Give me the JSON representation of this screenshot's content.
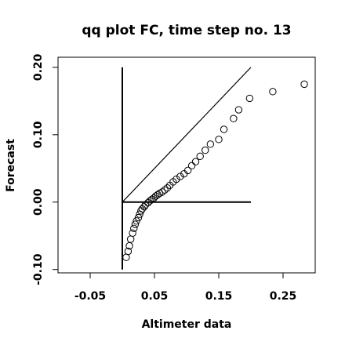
{
  "chart_data": {
    "type": "scatter",
    "title": "qq plot FC, time step no. 13",
    "xlabel": "Altimeter data",
    "ylabel": "Forecast",
    "xlim": [
      -0.1,
      0.3
    ],
    "ylim": [
      -0.105,
      0.215
    ],
    "xticks": [
      -0.05,
      0.05,
      0.15,
      0.25
    ],
    "xtick_labels": [
      "-0.05",
      "0.05",
      "0.15",
      "0.25"
    ],
    "yticks": [
      -0.1,
      0.0,
      0.1,
      0.2
    ],
    "ytick_labels": [
      "-0.10",
      "0.00",
      "0.10",
      "0.20"
    ],
    "grid": false,
    "reference_lines": {
      "diagonal": {
        "from": [
          0.0,
          0.0
        ],
        "to": [
          0.2,
          0.2
        ]
      },
      "vertical": {
        "x": 0.0,
        "from_y": -0.1,
        "to_y": 0.2
      },
      "horizontal": {
        "y": 0.0,
        "from_x": 0.0,
        "to_x": 0.2
      }
    },
    "points": [
      [
        0.006,
        -0.082
      ],
      [
        0.009,
        -0.073
      ],
      [
        0.011,
        -0.065
      ],
      [
        0.013,
        -0.055
      ],
      [
        0.016,
        -0.046
      ],
      [
        0.018,
        -0.039
      ],
      [
        0.02,
        -0.033
      ],
      [
        0.022,
        -0.028
      ],
      [
        0.025,
        -0.023
      ],
      [
        0.027,
        -0.018
      ],
      [
        0.029,
        -0.013
      ],
      [
        0.031,
        -0.01
      ],
      [
        0.034,
        -0.007
      ],
      [
        0.036,
        -0.004
      ],
      [
        0.04,
        -0.001
      ],
      [
        0.043,
        0.002
      ],
      [
        0.046,
        0.004
      ],
      [
        0.049,
        0.006
      ],
      [
        0.052,
        0.009
      ],
      [
        0.055,
        0.011
      ],
      [
        0.058,
        0.013
      ],
      [
        0.062,
        0.015
      ],
      [
        0.066,
        0.018
      ],
      [
        0.07,
        0.021
      ],
      [
        0.074,
        0.025
      ],
      [
        0.079,
        0.03
      ],
      [
        0.084,
        0.034
      ],
      [
        0.09,
        0.038
      ],
      [
        0.096,
        0.042
      ],
      [
        0.102,
        0.047
      ],
      [
        0.108,
        0.054
      ],
      [
        0.114,
        0.06
      ],
      [
        0.121,
        0.068
      ],
      [
        0.129,
        0.077
      ],
      [
        0.137,
        0.086
      ],
      [
        0.15,
        0.093
      ],
      [
        0.158,
        0.108
      ],
      [
        0.173,
        0.124
      ],
      [
        0.181,
        0.137
      ],
      [
        0.198,
        0.154
      ],
      [
        0.234,
        0.164
      ],
      [
        0.283,
        0.175
      ]
    ]
  }
}
